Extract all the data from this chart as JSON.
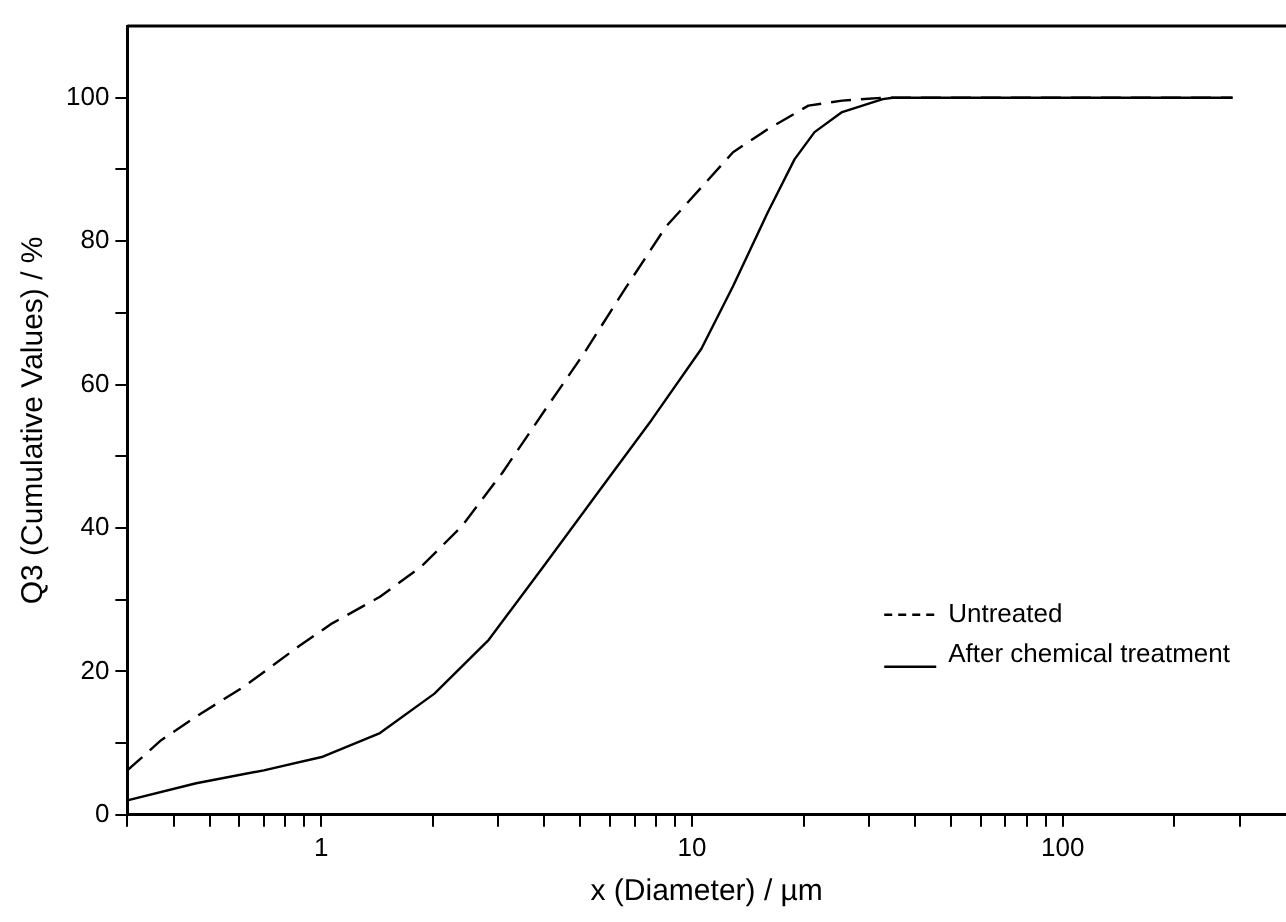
{
  "chart_data": {
    "type": "line",
    "xlabel": "x (Diameter) / µm",
    "ylabel": "Q3 (Cumulative Values) / %",
    "log": "x",
    "grid": false,
    "legend": "bottom right",
    "marker": "none",
    "xlim": [
      0.3,
      400
    ],
    "ylim": [
      0,
      110
    ],
    "xticks": [
      {
        "value": 0.3,
        "label": null
      },
      {
        "value": 0.4,
        "label": null
      },
      {
        "value": 0.5,
        "label": null
      },
      {
        "value": 0.6,
        "label": null
      },
      {
        "value": 0.7,
        "label": null
      },
      {
        "value": 0.8,
        "label": null
      },
      {
        "value": 0.9,
        "label": null
      },
      1,
      {
        "value": 2,
        "label": null
      },
      {
        "value": 3,
        "label": null
      },
      {
        "value": 4,
        "label": null
      },
      {
        "value": 5,
        "label": null
      },
      {
        "value": 6,
        "label": null
      },
      {
        "value": 7,
        "label": null
      },
      {
        "value": 8,
        "label": null
      },
      {
        "value": 9,
        "label": null
      },
      10,
      {
        "value": 20,
        "label": null
      },
      {
        "value": 30,
        "label": null
      },
      {
        "value": 40,
        "label": null
      },
      {
        "value": 50,
        "label": null
      },
      {
        "value": 60,
        "label": null
      },
      {
        "value": 70,
        "label": null
      },
      {
        "value": 80,
        "label": null
      },
      {
        "value": 90,
        "label": null
      },
      100,
      {
        "value": 200,
        "label": null
      },
      {
        "value": 300,
        "label": null
      }
    ],
    "yticks": [
      0,
      {
        "value": 10,
        "label": null
      },
      20,
      {
        "value": 30,
        "label": null
      },
      40,
      {
        "value": 50,
        "label": null
      },
      60,
      {
        "value": 70,
        "label": null
      },
      80,
      {
        "value": 90,
        "label": null
      },
      100
    ],
    "series": [
      {
        "name": "Untreated",
        "color": "#000000",
        "line_style": "dashed",
        "x": [
          0.3,
          0.37,
          0.46,
          0.62,
          0.87,
          1.07,
          1.44,
          1.86,
          2.39,
          3.08,
          3.97,
          5.12,
          6.59,
          8.5,
          10.6,
          12.9,
          16,
          20.6,
          25.4,
          32.7,
          287
        ],
        "values": [
          6.2,
          10.4,
          13.7,
          17.9,
          23.5,
          26.7,
          30.4,
          34.6,
          40.2,
          47.7,
          56.1,
          64.4,
          73.3,
          82,
          87.5,
          92.4,
          95.6,
          98.9,
          99.6,
          100,
          100
        ]
      },
      {
        "name": "After chemical treatment",
        "color": "#000000",
        "line_style": "solid",
        "x": [
          0.3,
          0.46,
          0.7,
          1.01,
          1.44,
          2.02,
          2.83,
          3.97,
          5.57,
          7.79,
          10.6,
          12.9,
          16,
          18.9,
          21.4,
          25.4,
          32.7,
          34.8,
          287
        ],
        "values": [
          2,
          4.4,
          6.2,
          8.1,
          11.4,
          16.9,
          24.4,
          34.6,
          44.9,
          55.1,
          65,
          73.7,
          84,
          91.4,
          95.2,
          98,
          99.8,
          100,
          100
        ]
      }
    ]
  }
}
